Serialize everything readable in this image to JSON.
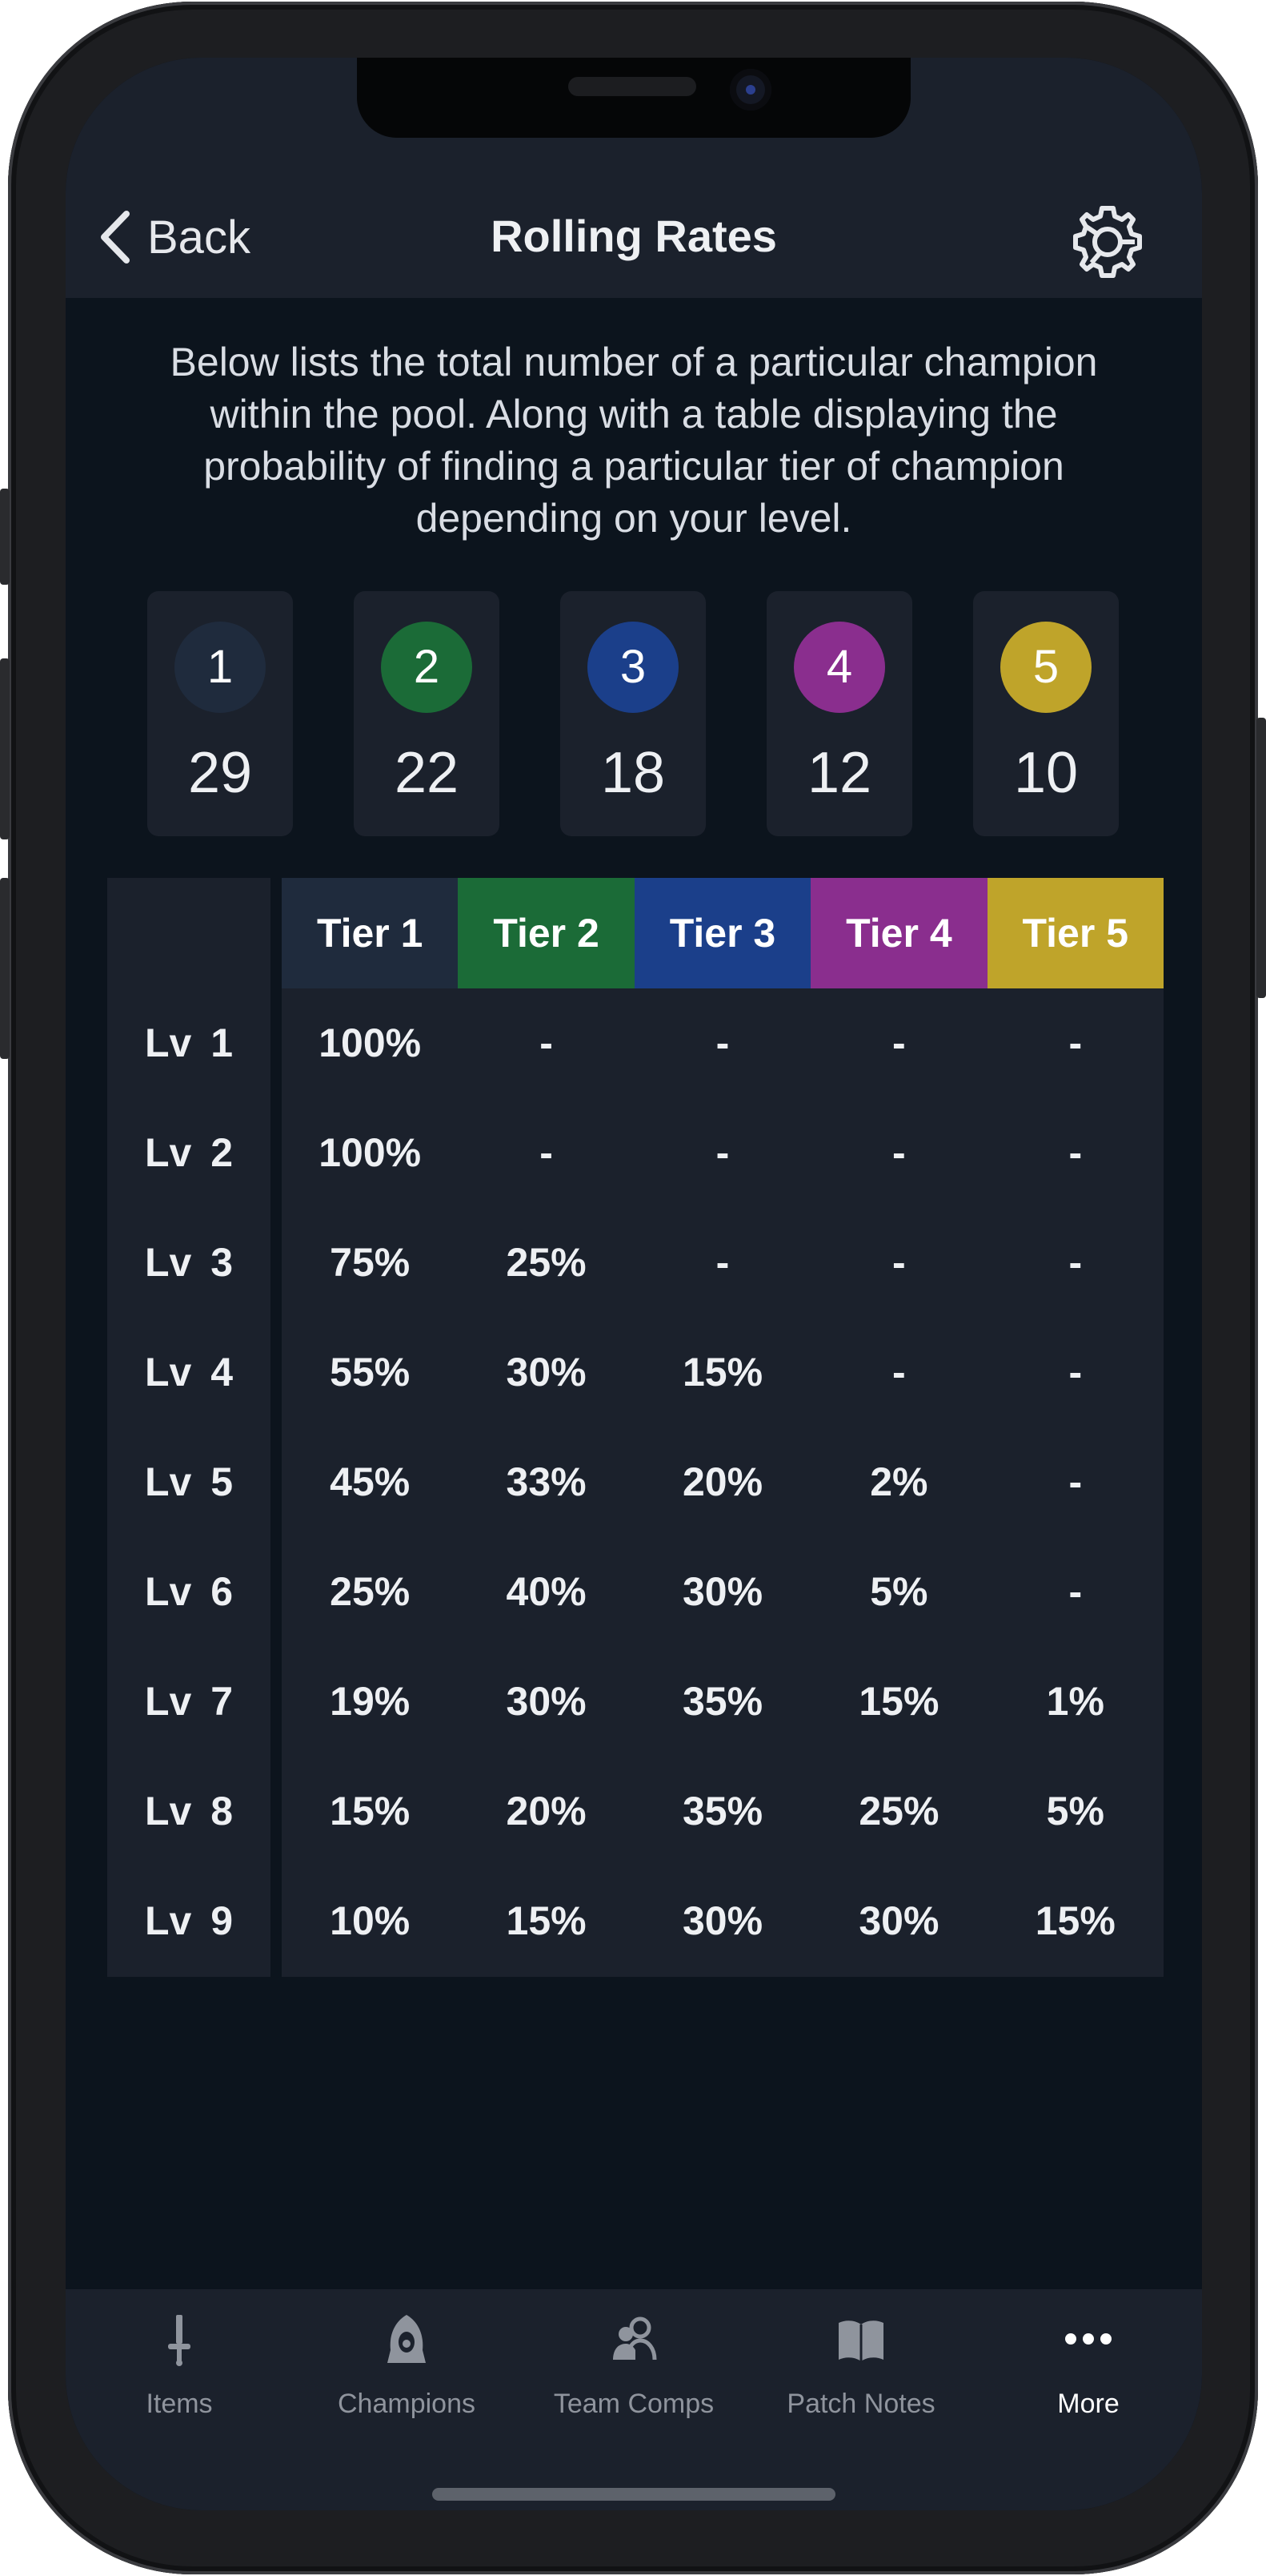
{
  "header": {
    "back_label": "Back",
    "title": "Rolling Rates"
  },
  "description": "Below lists the total number of a particular champion within the pool. Along with a table displaying the probability of finding a particular tier of champion depending on your level.",
  "pool_counts": [
    {
      "tier": "1",
      "count": "29",
      "color": "#1f2b3d"
    },
    {
      "tier": "2",
      "count": "22",
      "color": "#1b6b37"
    },
    {
      "tier": "3",
      "count": "18",
      "color": "#1b3f8a"
    },
    {
      "tier": "4",
      "count": "12",
      "color": "#8a2e8e"
    },
    {
      "tier": "5",
      "count": "10",
      "color": "#bfa42a"
    }
  ],
  "table": {
    "headers": [
      "Tier 1",
      "Tier 2",
      "Tier 3",
      "Tier 4",
      "Tier 5"
    ],
    "header_colors": [
      "#1f2b3d",
      "#1b6b37",
      "#1b3f8a",
      "#8a2e8e",
      "#bfa42a"
    ],
    "rows": [
      {
        "level": "Lv 1",
        "values": [
          "100%",
          "-",
          "-",
          "-",
          "-"
        ]
      },
      {
        "level": "Lv 2",
        "values": [
          "100%",
          "-",
          "-",
          "-",
          "-"
        ]
      },
      {
        "level": "Lv 3",
        "values": [
          "75%",
          "25%",
          "-",
          "-",
          "-"
        ]
      },
      {
        "level": "Lv 4",
        "values": [
          "55%",
          "30%",
          "15%",
          "-",
          "-"
        ]
      },
      {
        "level": "Lv 5",
        "values": [
          "45%",
          "33%",
          "20%",
          "2%",
          "-"
        ]
      },
      {
        "level": "Lv 6",
        "values": [
          "25%",
          "40%",
          "30%",
          "5%",
          "-"
        ]
      },
      {
        "level": "Lv 7",
        "values": [
          "19%",
          "30%",
          "35%",
          "15%",
          "1%"
        ]
      },
      {
        "level": "Lv 8",
        "values": [
          "15%",
          "20%",
          "35%",
          "25%",
          "5%"
        ]
      },
      {
        "level": "Lv 9",
        "values": [
          "10%",
          "15%",
          "30%",
          "30%",
          "15%"
        ]
      }
    ]
  },
  "tabs": [
    {
      "label": "Items",
      "icon": "sword-icon",
      "active": false
    },
    {
      "label": "Champions",
      "icon": "hooded-figure-icon",
      "active": false
    },
    {
      "label": "Team Comps",
      "icon": "users-icon",
      "active": false
    },
    {
      "label": "Patch Notes",
      "icon": "book-icon",
      "active": false
    },
    {
      "label": "More",
      "icon": "more-dots-icon",
      "active": true
    }
  ]
}
